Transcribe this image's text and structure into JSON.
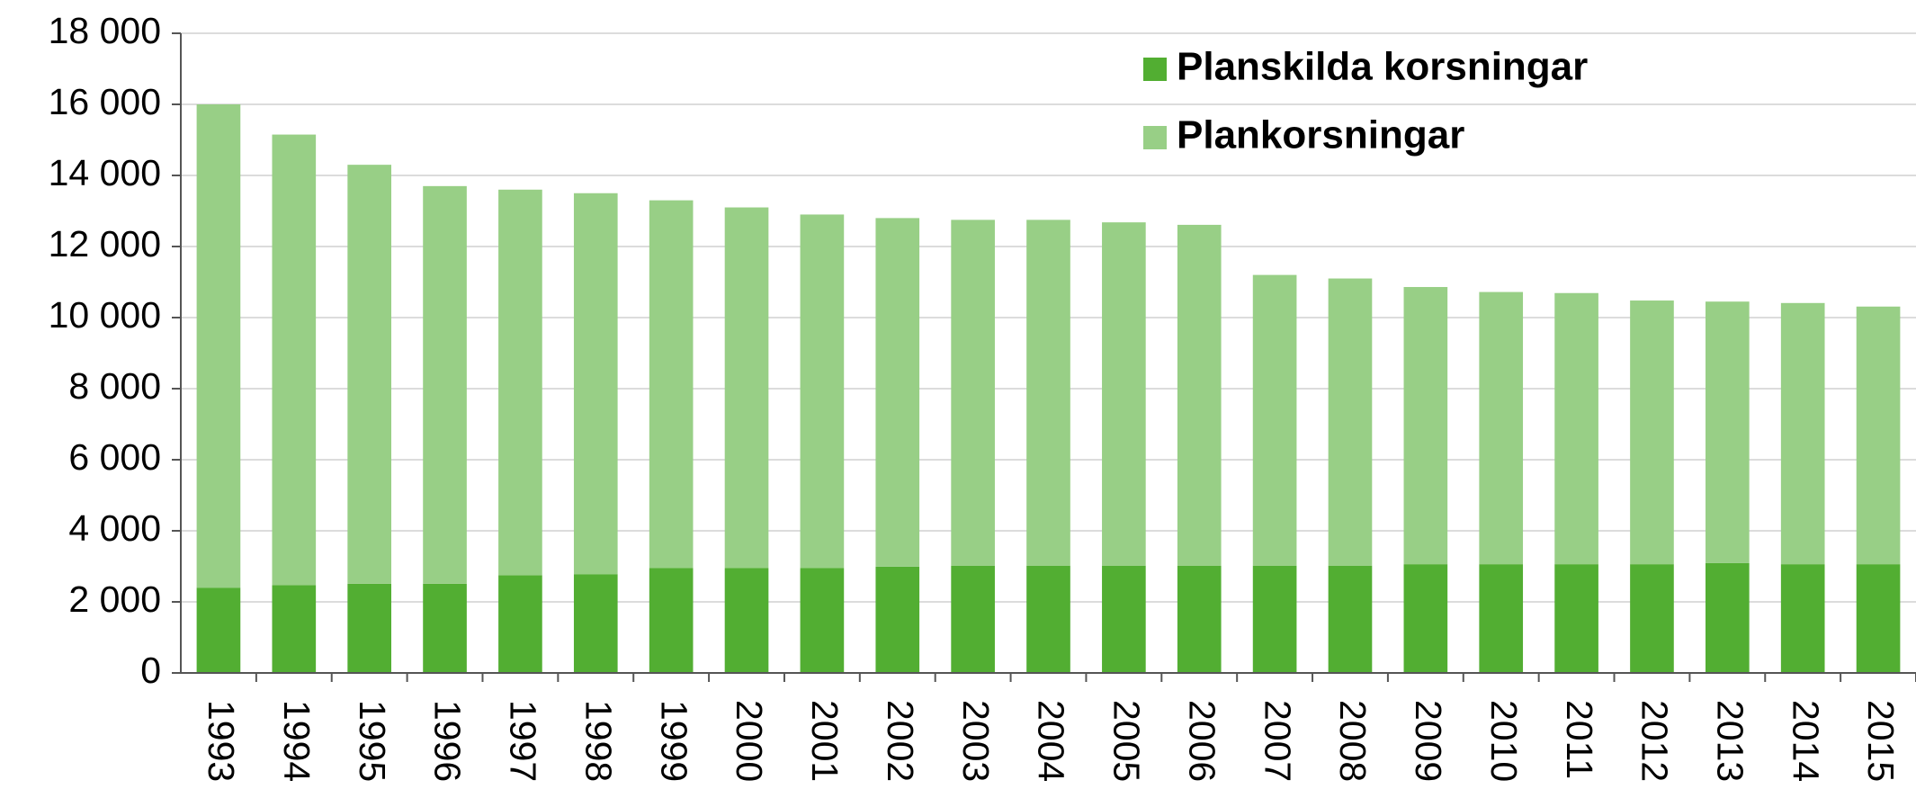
{
  "chart_data": {
    "type": "stacked-bar",
    "categories": [
      "1993",
      "1994",
      "1995",
      "1996",
      "1997",
      "1998",
      "1999",
      "2000",
      "2001",
      "2002",
      "2003",
      "2004",
      "2005",
      "2006",
      "2007",
      "2008",
      "2009",
      "2010",
      "2011",
      "2012",
      "2013",
      "2014",
      "2015"
    ],
    "series": [
      {
        "name": "Planskilda korsningar",
        "color": "#52ae32",
        "values": [
          2400,
          2470,
          2510,
          2510,
          2750,
          2780,
          2950,
          2950,
          2950,
          2990,
          3020,
          3020,
          3020,
          3020,
          3020,
          3020,
          3060,
          3060,
          3060,
          3060,
          3090,
          3060,
          3060
        ]
      },
      {
        "name": "Plankorsningar",
        "color": "#98cf86",
        "values": [
          13600,
          12680,
          11790,
          11190,
          10850,
          10720,
          10350,
          10150,
          9950,
          9810,
          9730,
          9730,
          9660,
          9590,
          8180,
          8080,
          7800,
          7660,
          7630,
          7420,
          7360,
          7350,
          7250
        ]
      }
    ],
    "ylim": [
      0,
      18000
    ],
    "yticks": [
      0,
      {
        "value": 2000,
        "label": "2 000"
      },
      {
        "value": 4000,
        "label": "4 000"
      },
      {
        "value": 6000,
        "label": "6 000"
      },
      {
        "value": 8000,
        "label": "8 000"
      },
      {
        "value": 10000,
        "label": "10 000"
      },
      {
        "value": 12000,
        "label": "12 000"
      },
      {
        "value": 14000,
        "label": "14 000"
      },
      {
        "value": 16000,
        "label": "16 000"
      },
      {
        "value": 18000,
        "label": "18 000"
      }
    ],
    "grid": true,
    "legend": "top-right"
  }
}
